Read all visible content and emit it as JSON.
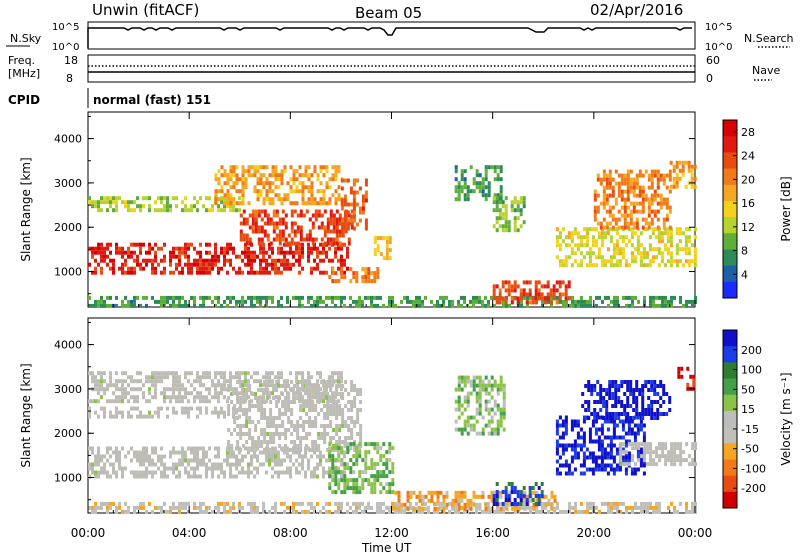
{
  "header": {
    "station": "Unwin (fitACF)",
    "beam": "Beam 05",
    "date": "02/Apr/2016"
  },
  "strip_labels": {
    "nsky": "N.Sky",
    "nsky_ticks": [
      "10^5",
      "10^0"
    ],
    "nsearch_ticks": [
      "10^5",
      "10^0"
    ],
    "nsearch": "N.Search",
    "freq": "Freq.",
    "freq_unit": "[MHz]",
    "freq_ticks": [
      "18",
      "8"
    ],
    "nave_ticks": [
      "60",
      "0"
    ],
    "nave": "Nave",
    "cpid": "CPID",
    "cpid_value": "normal (fast) 151"
  },
  "colors": {
    "power_scale": [
      "#1a2bff",
      "#1f5fa8",
      "#2e8b57",
      "#5fae3a",
      "#b7d330",
      "#f2d21c",
      "#f5a623",
      "#f07a18",
      "#e84c10",
      "#e01a10",
      "#d80000"
    ],
    "velocity_scale": [
      "#1010c8",
      "#1c3ce8",
      "#2e7d32",
      "#43a047",
      "#8bc34a",
      "#bdbdbd",
      "#c0c0b8",
      "#f5a623",
      "#f07a18",
      "#e84c10",
      "#d00000"
    ],
    "ground_scatter": "#bdbdb5"
  },
  "chart_data": [
    {
      "type": "heatmap",
      "panel": "power",
      "ylabel": "Slant Range [km]",
      "yticks": [
        "1000",
        "2000",
        "3000",
        "4000"
      ],
      "ylim": [
        200,
        4600
      ],
      "colorbar": {
        "label": "Power [dB]",
        "ticks": [
          "4",
          "8",
          "12",
          "16",
          "20",
          "24",
          "28"
        ],
        "range": [
          0,
          30
        ]
      },
      "regions": [
        {
          "t0": 0.0,
          "t1": 10.3,
          "r0": 1000,
          "r1": 1650,
          "value": 26
        },
        {
          "t0": 6.0,
          "t1": 10.4,
          "r0": 1600,
          "r1": 2400,
          "value": 24
        },
        {
          "t0": 0.0,
          "t1": 6.0,
          "r0": 2350,
          "r1": 2700,
          "value": 12
        },
        {
          "t0": 5.0,
          "t1": 10.0,
          "r0": 2500,
          "r1": 3400,
          "value": 18
        },
        {
          "t0": 10.0,
          "t1": 11.0,
          "r0": 2000,
          "r1": 3100,
          "value": 22
        },
        {
          "t0": 9.5,
          "t1": 11.5,
          "r0": 800,
          "r1": 1100,
          "value": 20
        },
        {
          "t0": 11.3,
          "t1": 12.0,
          "r0": 1300,
          "r1": 1800,
          "value": 16
        },
        {
          "t0": 0.0,
          "t1": 24.0,
          "r0": 250,
          "r1": 450,
          "value": 8
        },
        {
          "t0": 14.5,
          "t1": 16.3,
          "r0": 2600,
          "r1": 3400,
          "value": 8
        },
        {
          "t0": 16.0,
          "t1": 17.2,
          "r0": 1900,
          "r1": 2700,
          "value": 10
        },
        {
          "t0": 16.0,
          "t1": 19.0,
          "r0": 300,
          "r1": 800,
          "value": 24
        },
        {
          "t0": 18.5,
          "t1": 24.0,
          "r0": 1100,
          "r1": 2000,
          "value": 14
        },
        {
          "t0": 20.0,
          "t1": 23.0,
          "r0": 2000,
          "r1": 3300,
          "value": 20
        },
        {
          "t0": 23.0,
          "t1": 24.0,
          "r0": 2900,
          "r1": 3500,
          "value": 18
        }
      ]
    },
    {
      "type": "heatmap",
      "panel": "velocity",
      "ylabel": "Slant Range [km]",
      "yticks": [
        "1000",
        "2000",
        "3000",
        "4000"
      ],
      "ylim": [
        200,
        4600
      ],
      "colorbar": {
        "label": "Velocity [m s⁻¹]",
        "ticks": [
          "200",
          "100",
          "50",
          "15",
          "-15",
          "-50",
          "-100",
          "-200"
        ],
        "range": [
          -250,
          250
        ]
      },
      "regions": [
        {
          "t0": 0.0,
          "t1": 10.3,
          "r0": 1000,
          "r1": 1700,
          "value": 0
        },
        {
          "t0": 5.5,
          "t1": 10.8,
          "r0": 1650,
          "r1": 3200,
          "value": 0
        },
        {
          "t0": 0.0,
          "t1": 6.0,
          "r0": 2350,
          "r1": 2600,
          "value": 0
        },
        {
          "t0": 0.0,
          "t1": 10.0,
          "r0": 2700,
          "r1": 3400,
          "value": 5
        },
        {
          "t0": 9.5,
          "t1": 12.0,
          "r0": 700,
          "r1": 1800,
          "value": 60
        },
        {
          "t0": 0.0,
          "t1": 24.0,
          "r0": 250,
          "r1": 450,
          "value": -40
        },
        {
          "t0": 12.0,
          "t1": 18.5,
          "r0": 300,
          "r1": 700,
          "value": -90
        },
        {
          "t0": 16.0,
          "t1": 18.0,
          "r0": 400,
          "r1": 900,
          "value": 180
        },
        {
          "t0": 14.5,
          "t1": 16.5,
          "r0": 2000,
          "r1": 3300,
          "value": 40
        },
        {
          "t0": 18.5,
          "t1": 22.0,
          "r0": 1100,
          "r1": 2400,
          "value": 220
        },
        {
          "t0": 19.5,
          "t1": 23.0,
          "r0": 2300,
          "r1": 3200,
          "value": 230
        },
        {
          "t0": 21.0,
          "t1": 24.0,
          "r0": 1300,
          "r1": 1800,
          "value": 0
        },
        {
          "t0": 23.3,
          "t1": 24.0,
          "r0": 3000,
          "r1": 3500,
          "value": -220
        }
      ]
    }
  ],
  "xaxis": {
    "label": "Time UT",
    "ticks": [
      "00:00",
      "04:00",
      "08:00",
      "12:00",
      "16:00",
      "20:00",
      "00:00"
    ],
    "range": [
      0,
      24
    ]
  }
}
